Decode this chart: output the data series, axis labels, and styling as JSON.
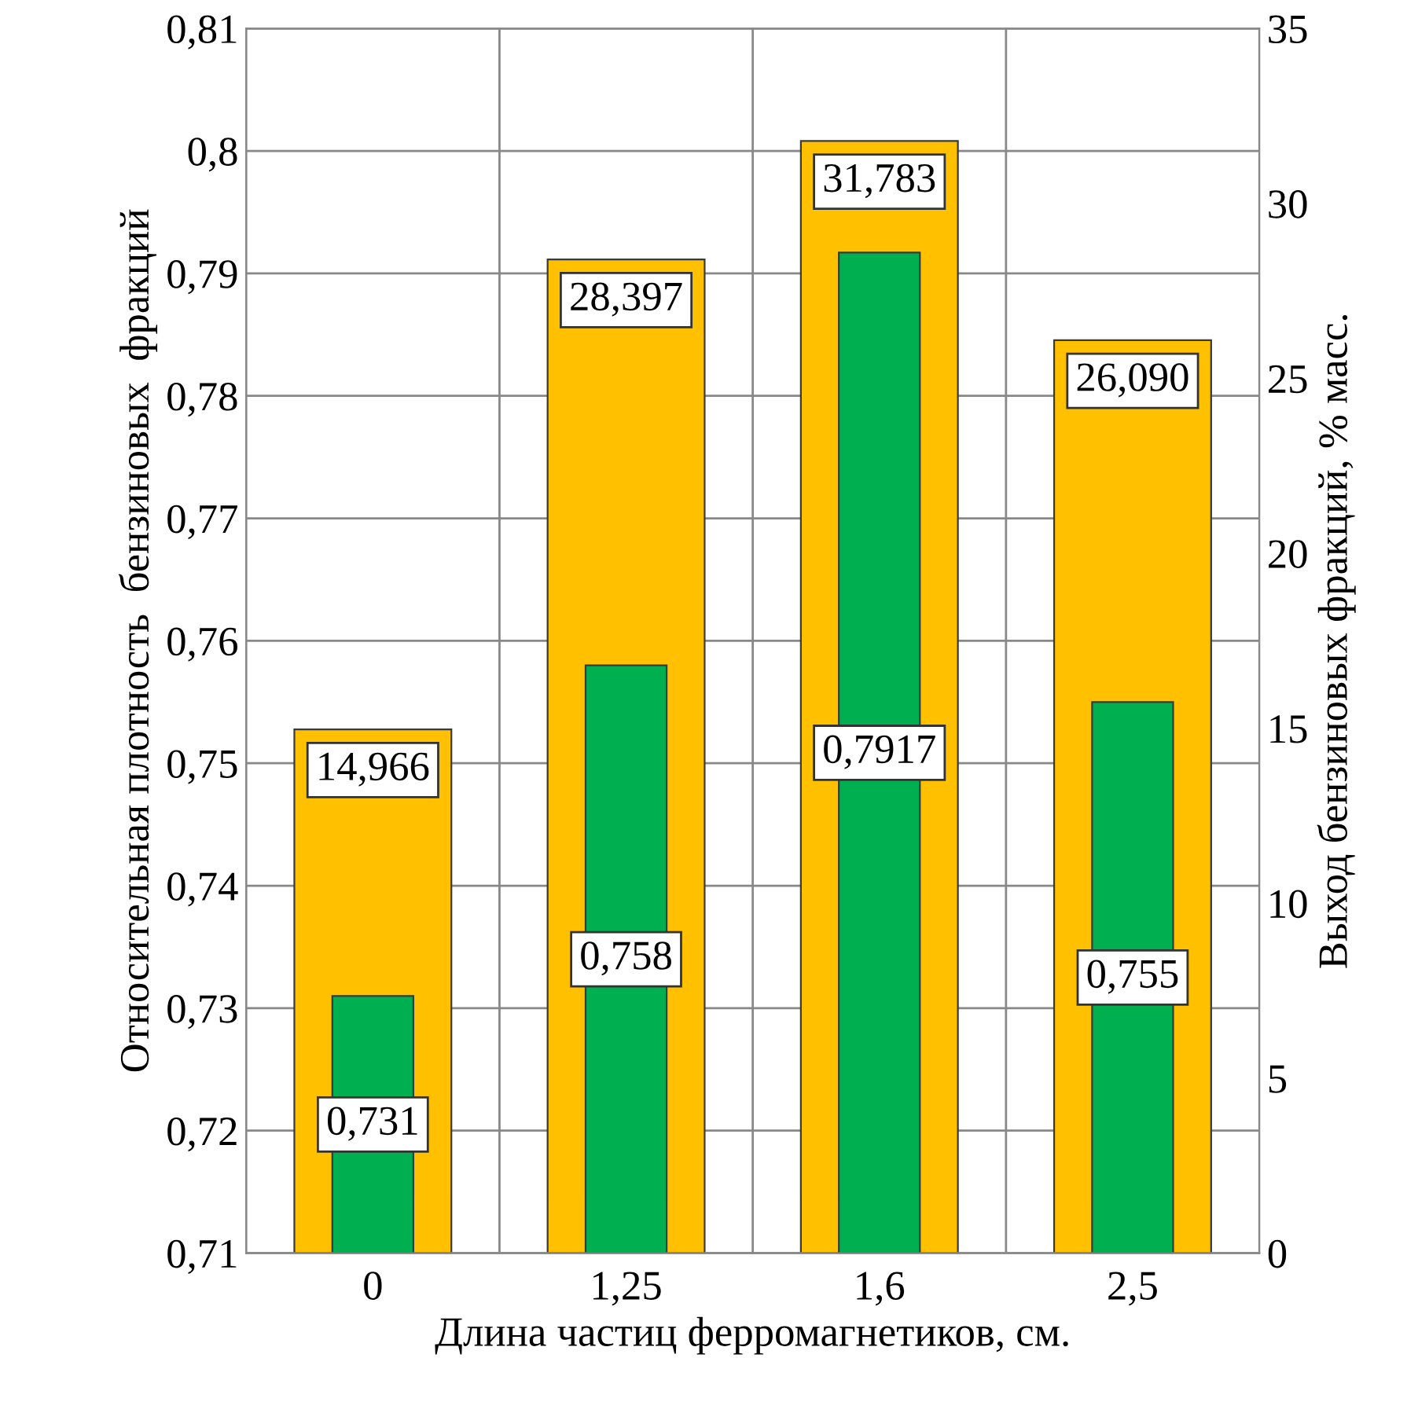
{
  "chart_data": {
    "type": "bar",
    "xlabel": "Длина частиц ферромагнетиков, см.",
    "ylabel": "Относительная плотность  бензиновых  фракций",
    "y2label": "Выход бензиновых фракций, % масс.",
    "categories": [
      "0",
      "1,25",
      "1,6",
      "2,5"
    ],
    "series": [
      {
        "axis": "y2",
        "color": "#ffc000",
        "values": [
          14.966,
          28.397,
          31.783,
          26.09
        ],
        "value_labels": [
          "14,966",
          "28,397",
          "31,783",
          "26,090"
        ]
      },
      {
        "axis": "y",
        "color": "#00b050",
        "values": [
          0.731,
          0.758,
          0.7917,
          0.755
        ],
        "value_labels": [
          "0,731",
          "0,758",
          "0,7917",
          "0,755"
        ]
      }
    ],
    "ylim": [
      0.71,
      0.81
    ],
    "yticks": [
      {
        "value": 0.71,
        "label": "0,71"
      },
      {
        "value": 0.72,
        "label": "0,72"
      },
      {
        "value": 0.73,
        "label": "0,73"
      },
      {
        "value": 0.74,
        "label": "0,74"
      },
      {
        "value": 0.75,
        "label": "0,75"
      },
      {
        "value": 0.76,
        "label": "0,76"
      },
      {
        "value": 0.77,
        "label": "0,77"
      },
      {
        "value": 0.78,
        "label": "0,78"
      },
      {
        "value": 0.79,
        "label": "0,79"
      },
      {
        "value": 0.8,
        "label": "0,8"
      },
      {
        "value": 0.81,
        "label": "0,81"
      }
    ],
    "y2lim": [
      0,
      35
    ],
    "y2ticks": [
      0,
      5,
      10,
      15,
      20,
      25,
      30,
      35
    ],
    "grid": true
  }
}
